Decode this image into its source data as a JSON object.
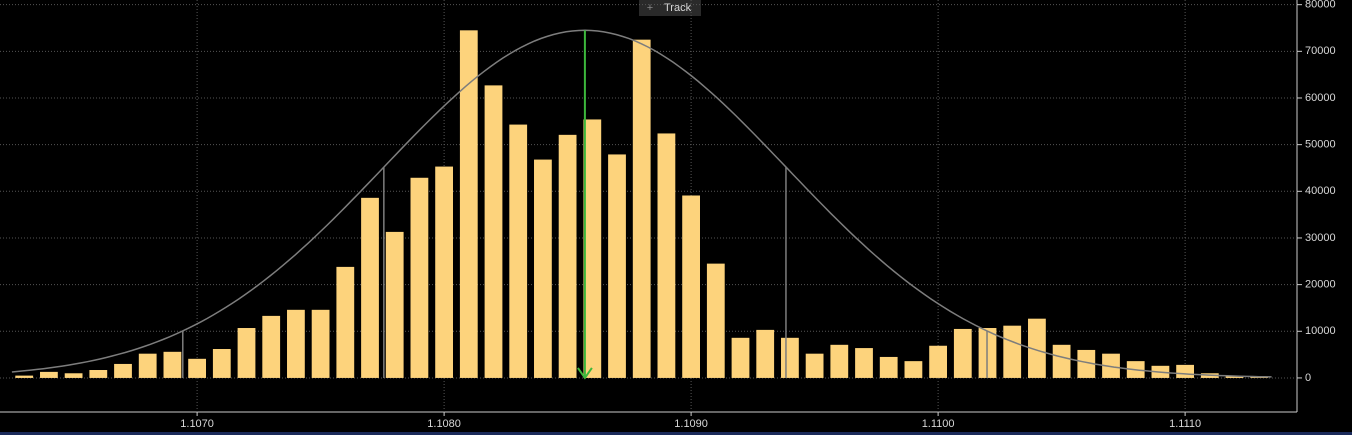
{
  "chart_data": {
    "type": "histogram",
    "bins": [
      1.10625,
      1.10635,
      1.10645,
      1.10655,
      1.10665,
      1.10675,
      1.10685,
      1.10695,
      1.10705,
      1.10715,
      1.10725,
      1.10735,
      1.10745,
      1.10755,
      1.10765,
      1.10775,
      1.10785,
      1.10795,
      1.10805,
      1.10815,
      1.10825,
      1.10835,
      1.10845,
      1.10855,
      1.10865,
      1.10875,
      1.10885,
      1.10895,
      1.10905,
      1.10915,
      1.10925,
      1.10935,
      1.10945,
      1.10955,
      1.10965,
      1.10975,
      1.10985,
      1.10995,
      1.11005,
      1.11015,
      1.11025,
      1.11035,
      1.11045,
      1.11055,
      1.11065,
      1.11075,
      1.11085,
      1.11095,
      1.11105,
      1.11115,
      1.11125,
      1.11135
    ],
    "values": [
      500,
      1300,
      1000,
      1700,
      3000,
      5200,
      5600,
      4100,
      6200,
      10700,
      13300,
      14600,
      14600,
      23800,
      38600,
      31300,
      42900,
      45300,
      74500,
      62700,
      54300,
      46800,
      52100,
      55400,
      47900,
      72500,
      52400,
      39100,
      24500,
      8600,
      10300,
      8600,
      5200,
      7100,
      6400,
      4500,
      3600,
      6900,
      10500,
      10700,
      11200,
      12700,
      7100,
      6000,
      5200,
      3600,
      2600,
      2800,
      1000,
      400,
      200
    ],
    "color": "#fdd37c",
    "fit": {
      "mean": 1.10857,
      "sigma": 0.000814,
      "peak": 74500,
      "color": "#7d7d7d",
      "mean_color": "#3cb83c"
    },
    "xlim": [
      1.106202,
      1.111453
    ],
    "xticks": [
      {
        "value": 1.107,
        "label": "1.1070"
      },
      {
        "value": 1.108,
        "label": "1.1080"
      },
      {
        "value": 1.109,
        "label": "1.1090"
      },
      {
        "value": 1.11,
        "label": "1.1100"
      },
      {
        "value": 1.111,
        "label": "1.1110"
      }
    ],
    "ylim": [
      -7300,
      81000
    ],
    "yticks": [
      0,
      10000,
      20000,
      30000,
      40000,
      50000,
      60000,
      70000,
      80000
    ],
    "grid": true,
    "track_label": "Track"
  }
}
